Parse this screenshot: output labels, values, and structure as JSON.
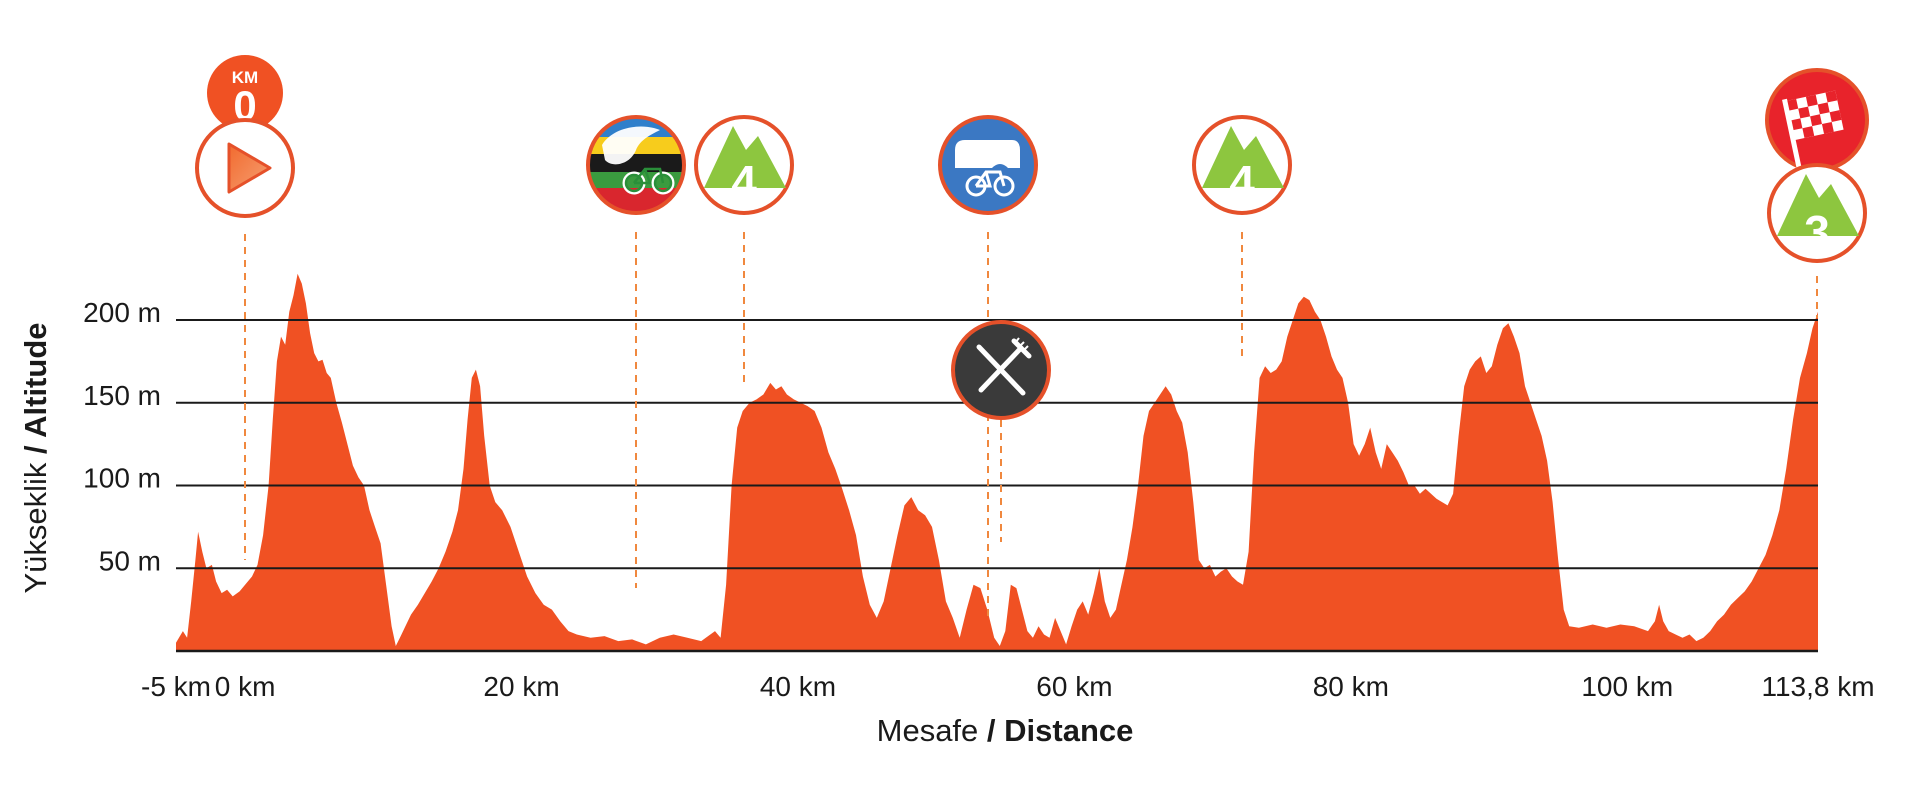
{
  "chart_data": {
    "type": "area",
    "title": "",
    "xlabel_prefix": "Mesafe",
    "xlabel_suffix": "/ Distance",
    "ylabel_prefix": "Yükseklik",
    "ylabel_suffix": "/ Altitude",
    "xlim": [
      -5,
      113.8
    ],
    "ylim": [
      0,
      230
    ],
    "x_ticks": [
      {
        "value": -5,
        "label": "-5 km"
      },
      {
        "value": 0,
        "label": "0 km"
      },
      {
        "value": 20,
        "label": "20 km"
      },
      {
        "value": 40,
        "label": "40 km"
      },
      {
        "value": 60,
        "label": "60 km"
      },
      {
        "value": 80,
        "label": "80 km"
      },
      {
        "value": 100,
        "label": "100 km"
      },
      {
        "value": 113.8,
        "label": "113,8 km"
      }
    ],
    "y_ticks": [
      {
        "value": 50,
        "label": "50 m"
      },
      {
        "value": 100,
        "label": "100 m"
      },
      {
        "value": 150,
        "label": "150 m"
      },
      {
        "value": 200,
        "label": "200 m"
      }
    ],
    "grid": true,
    "fill_color": "#f05123",
    "series": [
      {
        "name": "Altitude",
        "points": [
          [
            -5,
            5
          ],
          [
            -4.5,
            12
          ],
          [
            -4.2,
            8
          ],
          [
            -3.9,
            30
          ],
          [
            -3.6,
            55
          ],
          [
            -3.4,
            72
          ],
          [
            -3.1,
            60
          ],
          [
            -2.8,
            50
          ],
          [
            -2.4,
            52
          ],
          [
            -2.1,
            42
          ],
          [
            -1.7,
            35
          ],
          [
            -1.3,
            37
          ],
          [
            -0.9,
            33
          ],
          [
            -0.4,
            36
          ],
          [
            0,
            40
          ],
          [
            0.5,
            45
          ],
          [
            0.9,
            52
          ],
          [
            1.3,
            70
          ],
          [
            1.7,
            100
          ],
          [
            2,
            140
          ],
          [
            2.3,
            175
          ],
          [
            2.6,
            190
          ],
          [
            2.9,
            185
          ],
          [
            3.2,
            205
          ],
          [
            3.5,
            215
          ],
          [
            3.8,
            228
          ],
          [
            4.1,
            222
          ],
          [
            4.4,
            210
          ],
          [
            4.7,
            192
          ],
          [
            5,
            180
          ],
          [
            5.3,
            175
          ],
          [
            5.6,
            176
          ],
          [
            5.9,
            168
          ],
          [
            6.2,
            165
          ],
          [
            6.6,
            150
          ],
          [
            7,
            138
          ],
          [
            7.4,
            125
          ],
          [
            7.8,
            112
          ],
          [
            8.2,
            105
          ],
          [
            8.6,
            100
          ],
          [
            9,
            85
          ],
          [
            9.4,
            75
          ],
          [
            9.8,
            65
          ],
          [
            10.2,
            40
          ],
          [
            10.6,
            15
          ],
          [
            10.9,
            3
          ],
          [
            11.2,
            8
          ],
          [
            11.6,
            15
          ],
          [
            12,
            22
          ],
          [
            12.5,
            28
          ],
          [
            13,
            35
          ],
          [
            13.5,
            42
          ],
          [
            14,
            50
          ],
          [
            14.5,
            60
          ],
          [
            15,
            72
          ],
          [
            15.4,
            85
          ],
          [
            15.8,
            110
          ],
          [
            16.1,
            140
          ],
          [
            16.4,
            165
          ],
          [
            16.7,
            170
          ],
          [
            17,
            160
          ],
          [
            17.3,
            130
          ],
          [
            17.7,
            100
          ],
          [
            18.1,
            90
          ],
          [
            18.6,
            85
          ],
          [
            19.2,
            75
          ],
          [
            19.8,
            60
          ],
          [
            20.4,
            45
          ],
          [
            21,
            35
          ],
          [
            21.6,
            28
          ],
          [
            22.2,
            25
          ],
          [
            22.8,
            18
          ],
          [
            23.4,
            12
          ],
          [
            24,
            10
          ],
          [
            25,
            8
          ],
          [
            26,
            9
          ],
          [
            27,
            6
          ],
          [
            28,
            7
          ],
          [
            29,
            4
          ],
          [
            30,
            8
          ],
          [
            31,
            10
          ],
          [
            32,
            8
          ],
          [
            33,
            6
          ],
          [
            34,
            12
          ],
          [
            34.4,
            8
          ],
          [
            34.8,
            40
          ],
          [
            35.2,
            100
          ],
          [
            35.6,
            135
          ],
          [
            36,
            145
          ],
          [
            36.5,
            150
          ],
          [
            37,
            152
          ],
          [
            37.5,
            155
          ],
          [
            38,
            162
          ],
          [
            38.4,
            158
          ],
          [
            38.8,
            160
          ],
          [
            39.2,
            155
          ],
          [
            39.7,
            152
          ],
          [
            40.2,
            150
          ],
          [
            40.7,
            148
          ],
          [
            41.2,
            145
          ],
          [
            41.7,
            135
          ],
          [
            42.2,
            120
          ],
          [
            42.7,
            110
          ],
          [
            43.2,
            98
          ],
          [
            43.7,
            85
          ],
          [
            44.2,
            70
          ],
          [
            44.7,
            45
          ],
          [
            45.2,
            28
          ],
          [
            45.7,
            20
          ],
          [
            46.2,
            30
          ],
          [
            46.7,
            50
          ],
          [
            47.2,
            70
          ],
          [
            47.7,
            88
          ],
          [
            48.2,
            93
          ],
          [
            48.7,
            85
          ],
          [
            49.2,
            82
          ],
          [
            49.7,
            75
          ],
          [
            50.2,
            55
          ],
          [
            50.7,
            30
          ],
          [
            51.2,
            20
          ],
          [
            51.7,
            8
          ],
          [
            52.2,
            25
          ],
          [
            52.7,
            40
          ],
          [
            53.2,
            38
          ],
          [
            53.7,
            25
          ],
          [
            54.2,
            8
          ],
          [
            54.6,
            3
          ],
          [
            55,
            12
          ],
          [
            55.4,
            40
          ],
          [
            55.8,
            38
          ],
          [
            56.2,
            25
          ],
          [
            56.6,
            12
          ],
          [
            57,
            8
          ],
          [
            57.4,
            15
          ],
          [
            57.8,
            10
          ],
          [
            58.2,
            8
          ],
          [
            58.6,
            20
          ],
          [
            59,
            12
          ],
          [
            59.4,
            4
          ],
          [
            59.8,
            15
          ],
          [
            60.2,
            25
          ],
          [
            60.6,
            30
          ],
          [
            61,
            22
          ],
          [
            61.4,
            35
          ],
          [
            61.8,
            50
          ],
          [
            62.2,
            30
          ],
          [
            62.6,
            20
          ],
          [
            63,
            25
          ],
          [
            63.4,
            40
          ],
          [
            63.8,
            55
          ],
          [
            64.2,
            75
          ],
          [
            64.6,
            100
          ],
          [
            65,
            130
          ],
          [
            65.4,
            145
          ],
          [
            65.8,
            150
          ],
          [
            66.2,
            155
          ],
          [
            66.6,
            160
          ],
          [
            67,
            155
          ],
          [
            67.4,
            145
          ],
          [
            67.8,
            138
          ],
          [
            68.2,
            120
          ],
          [
            68.6,
            90
          ],
          [
            69,
            55
          ],
          [
            69.4,
            50
          ],
          [
            69.8,
            52
          ],
          [
            70.2,
            45
          ],
          [
            70.6,
            48
          ],
          [
            71,
            50
          ],
          [
            71.4,
            45
          ],
          [
            71.8,
            42
          ],
          [
            72.2,
            40
          ],
          [
            72.6,
            60
          ],
          [
            73,
            120
          ],
          [
            73.4,
            165
          ],
          [
            73.8,
            172
          ],
          [
            74.2,
            168
          ],
          [
            74.6,
            170
          ],
          [
            75,
            175
          ],
          [
            75.4,
            190
          ],
          [
            75.8,
            200
          ],
          [
            76.2,
            210
          ],
          [
            76.6,
            214
          ],
          [
            77,
            212
          ],
          [
            77.4,
            205
          ],
          [
            77.8,
            200
          ],
          [
            78.2,
            190
          ],
          [
            78.6,
            178
          ],
          [
            79,
            170
          ],
          [
            79.4,
            165
          ],
          [
            79.8,
            150
          ],
          [
            80.2,
            125
          ],
          [
            80.6,
            118
          ],
          [
            81,
            125
          ],
          [
            81.4,
            135
          ],
          [
            81.8,
            120
          ],
          [
            82.2,
            110
          ],
          [
            82.6,
            125
          ],
          [
            83,
            120
          ],
          [
            83.4,
            115
          ],
          [
            83.8,
            108
          ],
          [
            84.2,
            100
          ],
          [
            84.6,
            100
          ],
          [
            85,
            95
          ],
          [
            85.4,
            98
          ],
          [
            85.8,
            95
          ],
          [
            86.2,
            92
          ],
          [
            86.6,
            90
          ],
          [
            87,
            88
          ],
          [
            87.4,
            95
          ],
          [
            87.8,
            130
          ],
          [
            88.2,
            160
          ],
          [
            88.6,
            170
          ],
          [
            89,
            175
          ],
          [
            89.4,
            178
          ],
          [
            89.8,
            168
          ],
          [
            90.2,
            172
          ],
          [
            90.6,
            185
          ],
          [
            91,
            195
          ],
          [
            91.4,
            198
          ],
          [
            91.8,
            190
          ],
          [
            92.2,
            180
          ],
          [
            92.6,
            160
          ],
          [
            93,
            150
          ],
          [
            93.4,
            140
          ],
          [
            93.8,
            130
          ],
          [
            94.2,
            115
          ],
          [
            94.6,
            90
          ],
          [
            95,
            55
          ],
          [
            95.4,
            25
          ],
          [
            95.8,
            15
          ],
          [
            96.5,
            14
          ],
          [
            97.5,
            16
          ],
          [
            98.5,
            14
          ],
          [
            99.5,
            16
          ],
          [
            100.5,
            15
          ],
          [
            101.5,
            12
          ],
          [
            102,
            18
          ],
          [
            102.3,
            28
          ],
          [
            102.6,
            18
          ],
          [
            103,
            12
          ],
          [
            103.5,
            10
          ],
          [
            104,
            8
          ],
          [
            104.5,
            10
          ],
          [
            105,
            6
          ],
          [
            105.5,
            8
          ],
          [
            106,
            12
          ],
          [
            106.5,
            18
          ],
          [
            107,
            22
          ],
          [
            107.5,
            28
          ],
          [
            108,
            32
          ],
          [
            108.5,
            36
          ],
          [
            109,
            42
          ],
          [
            109.5,
            50
          ],
          [
            110,
            58
          ],
          [
            110.5,
            70
          ],
          [
            111,
            85
          ],
          [
            111.5,
            110
          ],
          [
            112,
            140
          ],
          [
            112.5,
            165
          ],
          [
            113,
            180
          ],
          [
            113.4,
            195
          ],
          [
            113.8,
            205
          ]
        ]
      }
    ],
    "markers": [
      {
        "name": "start",
        "x": -0.3,
        "badge": "0",
        "badge_caption": "KM"
      },
      {
        "name": "sprint",
        "x": 28
      },
      {
        "name": "kom-cat4-a",
        "x": 35.6,
        "label": "4"
      },
      {
        "name": "feed-zone",
        "x": 53.4
      },
      {
        "name": "food",
        "x": 54.5
      },
      {
        "name": "kom-cat4-b",
        "x": 71.4,
        "label": "4"
      },
      {
        "name": "finish",
        "x": 113.8,
        "label": "3"
      }
    ]
  }
}
